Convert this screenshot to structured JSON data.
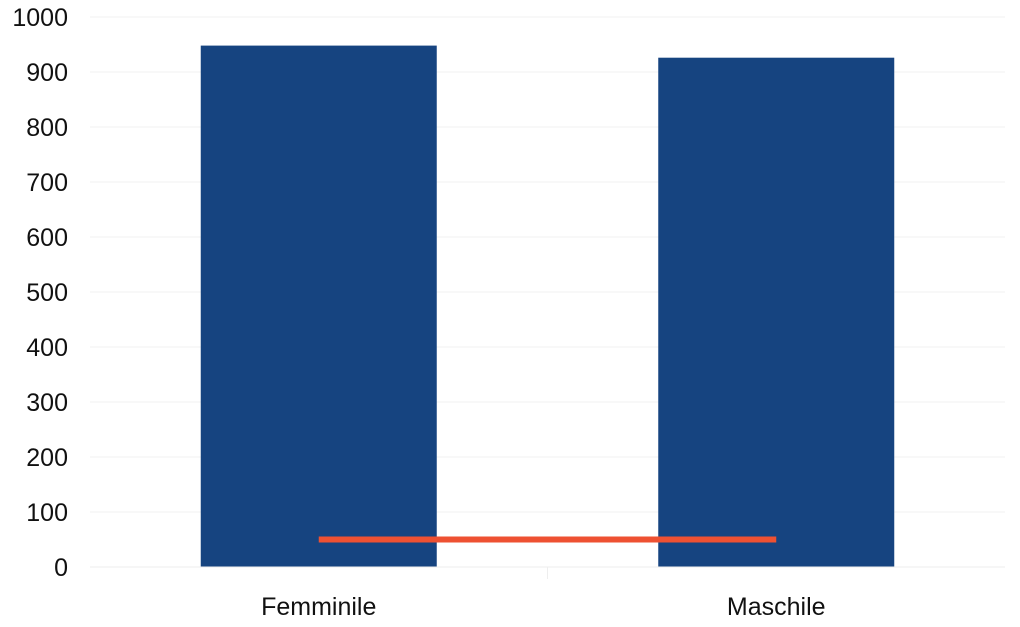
{
  "chart_data": {
    "type": "bar",
    "categories": [
      "Femminile",
      "Maschile"
    ],
    "series": [
      {
        "type": "bar",
        "values": [
          948,
          926
        ],
        "color": "#164480"
      },
      {
        "type": "line",
        "values": [
          50,
          50
        ],
        "color": "#ee5132"
      }
    ],
    "title": "",
    "xlabel": "",
    "ylabel": "",
    "ylim": [
      0,
      1000
    ],
    "yticks": [
      0,
      100,
      200,
      300,
      400,
      500,
      600,
      700,
      800,
      900,
      1000
    ],
    "grid": true,
    "legend": "none"
  }
}
